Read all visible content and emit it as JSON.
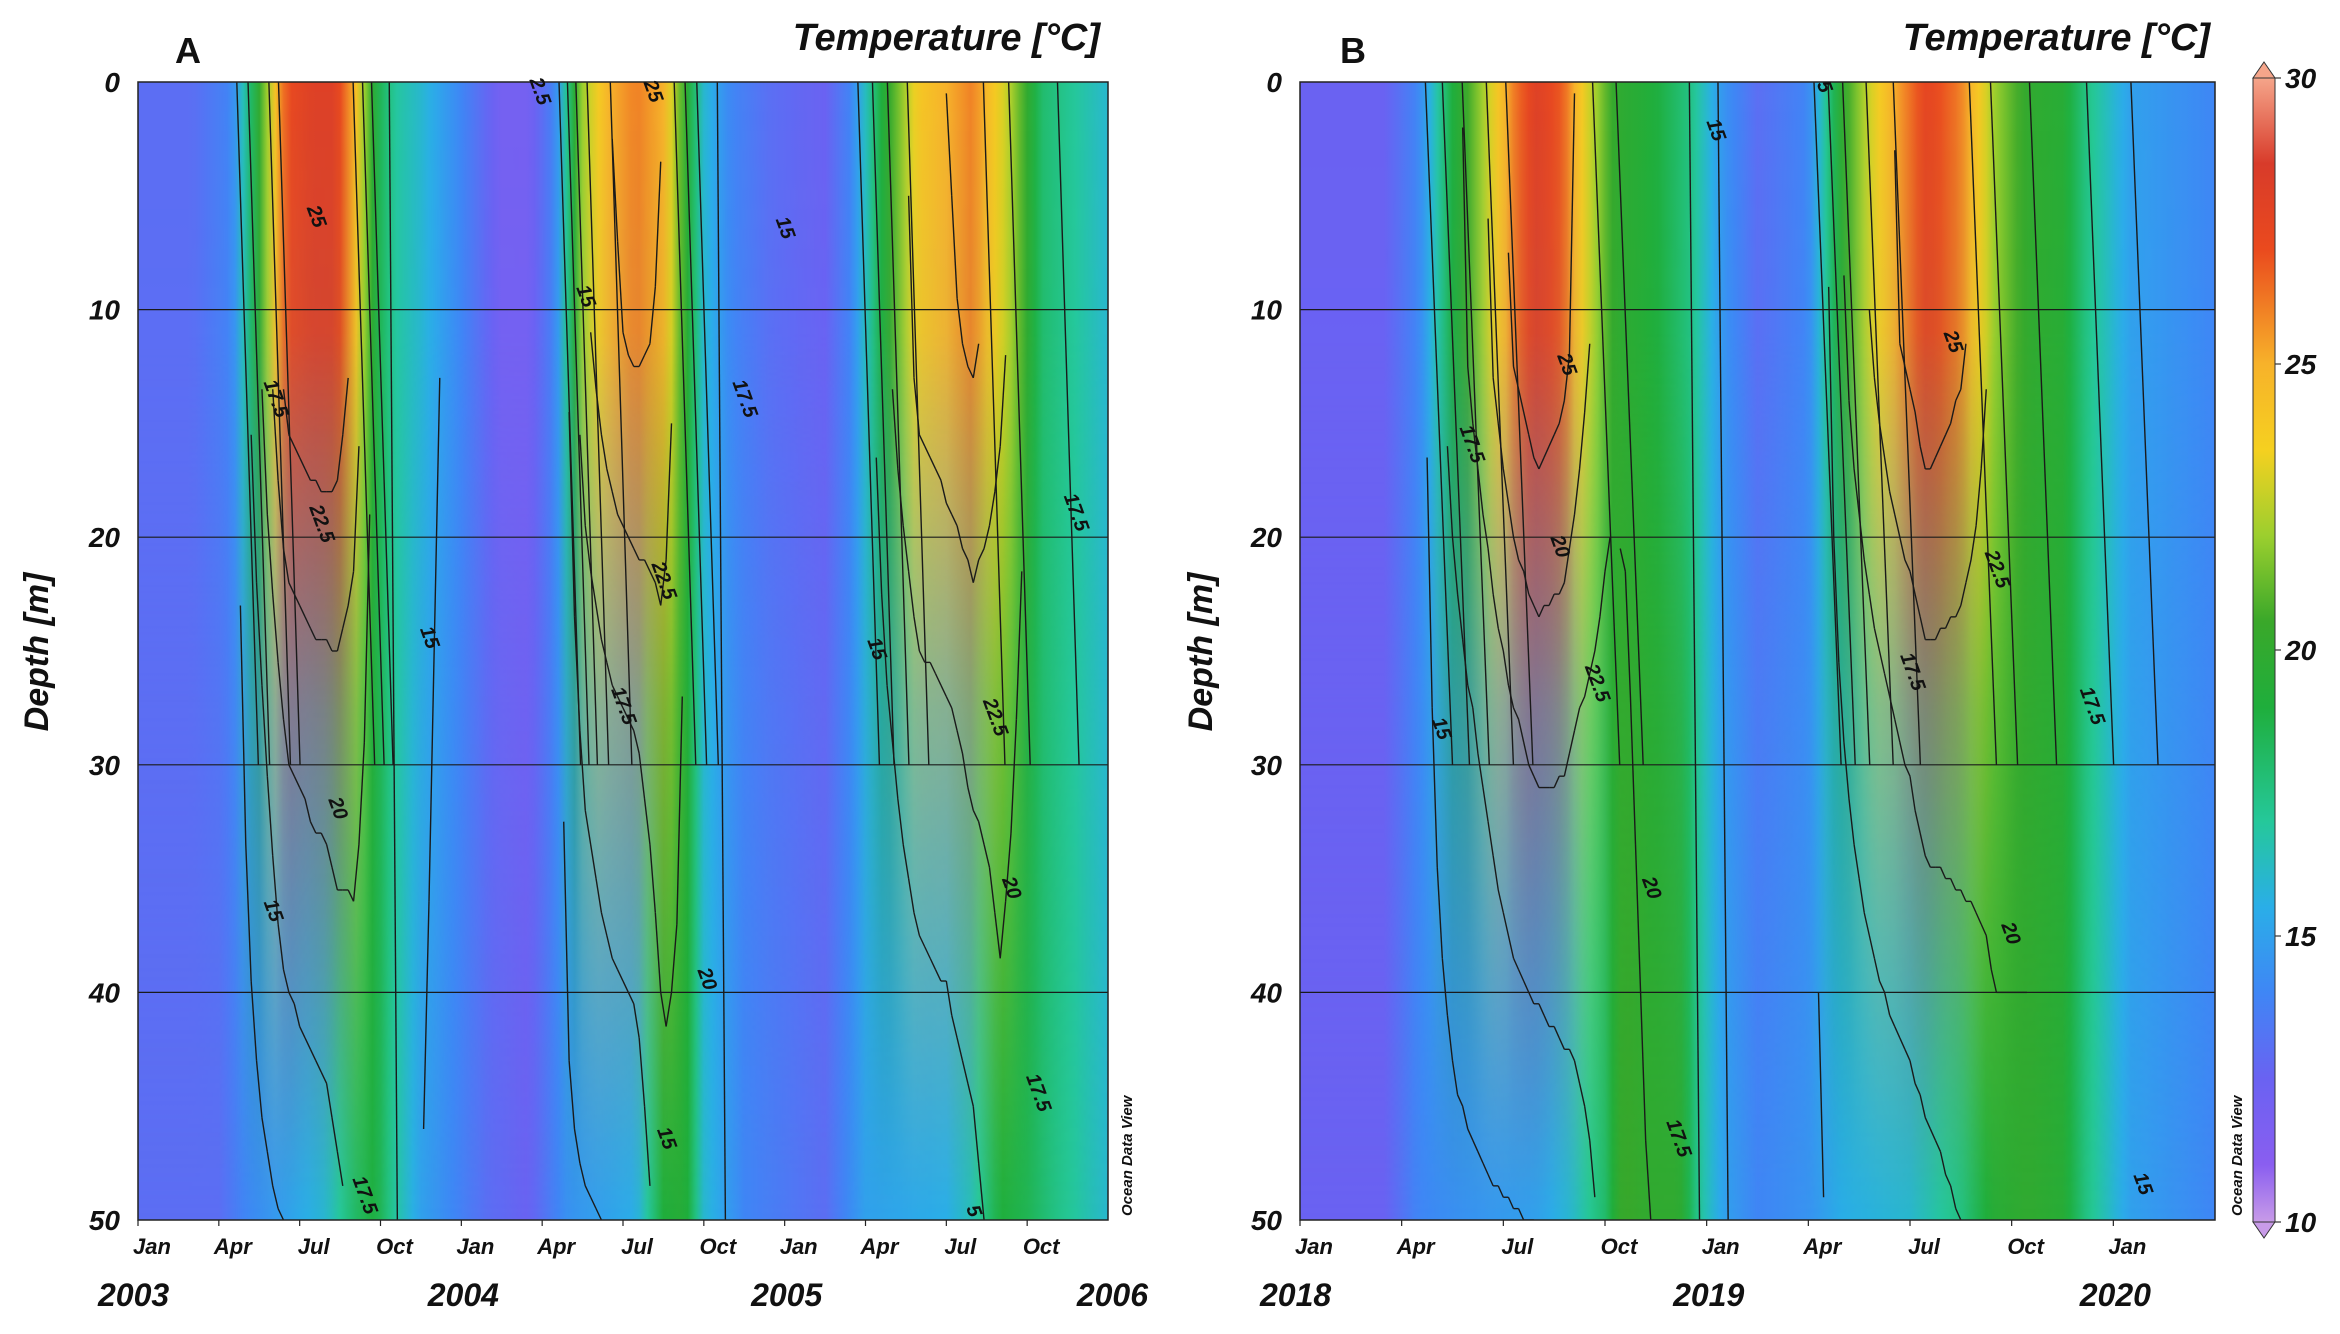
{
  "colorbar": {
    "ticks": [
      30,
      25,
      20,
      15,
      10
    ],
    "range": [
      10,
      30
    ],
    "stops": [
      {
        "value": 10,
        "color": "#c89be8"
      },
      {
        "value": 11,
        "color": "#8a5ef0"
      },
      {
        "value": 12.5,
        "color": "#6a62f2"
      },
      {
        "value": 14,
        "color": "#3f86f5"
      },
      {
        "value": 15.5,
        "color": "#2aaee8"
      },
      {
        "value": 17,
        "color": "#25c89a"
      },
      {
        "value": 19,
        "color": "#1fae3c"
      },
      {
        "value": 20.5,
        "color": "#3aa82a"
      },
      {
        "value": 22,
        "color": "#9ccf2e"
      },
      {
        "value": 23.5,
        "color": "#f5d020"
      },
      {
        "value": 25,
        "color": "#f7b22a"
      },
      {
        "value": 27,
        "color": "#ea4a1e"
      },
      {
        "value": 28.5,
        "color": "#d83b2a"
      },
      {
        "value": 30,
        "color": "#f5a58a"
      }
    ]
  },
  "source_label": "Ocean Data View",
  "chart_data": [
    {
      "type": "heatmap",
      "panel": "A",
      "title": "Temperature [°C]",
      "ylabel": "Depth [m]",
      "ylim": [
        0,
        50
      ],
      "yticks": [
        0,
        10,
        20,
        30,
        40,
        50
      ],
      "month_ticks": [
        "Jan",
        "Apr",
        "Jul",
        "Oct",
        "Jan",
        "Apr",
        "Jul",
        "Oct",
        "Jan",
        "Apr",
        "Jul",
        "Oct"
      ],
      "year_labels": [
        "2003",
        "2004",
        "2005",
        "2006"
      ],
      "surface_profile": [
        {
          "m": 0,
          "t": 13
        },
        {
          "m": 2,
          "t": 13
        },
        {
          "m": 3.5,
          "t": 14
        },
        {
          "m": 4.5,
          "t": 20
        },
        {
          "m": 5.5,
          "t": 27
        },
        {
          "m": 6.5,
          "t": 28
        },
        {
          "m": 7.3,
          "t": 28
        },
        {
          "m": 8,
          "t": 25
        },
        {
          "m": 8.8,
          "t": 19
        },
        {
          "m": 9.5,
          "t": 17
        },
        {
          "m": 10.5,
          "t": 16
        },
        {
          "m": 12,
          "t": 14
        },
        {
          "m": 13.5,
          "t": 12
        },
        {
          "m": 14.5,
          "t": 12
        },
        {
          "m": 15.5,
          "t": 14
        },
        {
          "m": 16.5,
          "t": 22
        },
        {
          "m": 17.5,
          "t": 25
        },
        {
          "m": 18.5,
          "t": 26
        },
        {
          "m": 19.5,
          "t": 25
        },
        {
          "m": 20.3,
          "t": 20
        },
        {
          "m": 21,
          "t": 16
        },
        {
          "m": 22,
          "t": 14
        },
        {
          "m": 23.5,
          "t": 13
        },
        {
          "m": 25.5,
          "t": 12.5
        },
        {
          "m": 26.5,
          "t": 14
        },
        {
          "m": 27.8,
          "t": 20
        },
        {
          "m": 29,
          "t": 24
        },
        {
          "m": 31,
          "t": 26
        },
        {
          "m": 32.5,
          "t": 22
        },
        {
          "m": 33.5,
          "t": 18
        },
        {
          "m": 36,
          "t": 16
        }
      ],
      "bottom_profile": [
        {
          "m": 0,
          "t": 13
        },
        {
          "m": 3,
          "t": 13
        },
        {
          "m": 4,
          "t": 14
        },
        {
          "m": 5.5,
          "t": 15
        },
        {
          "m": 7,
          "t": 16
        },
        {
          "m": 8,
          "t": 18
        },
        {
          "m": 8.8,
          "t": 19
        },
        {
          "m": 9.5,
          "t": 17
        },
        {
          "m": 10.5,
          "t": 15
        },
        {
          "m": 13,
          "t": 13
        },
        {
          "m": 14.5,
          "t": 12.5
        },
        {
          "m": 16,
          "t": 14.5
        },
        {
          "m": 18.5,
          "t": 15.5
        },
        {
          "m": 19.5,
          "t": 19
        },
        {
          "m": 20.3,
          "t": 19.5
        },
        {
          "m": 21,
          "t": 16
        },
        {
          "m": 22.5,
          "t": 14
        },
        {
          "m": 25.5,
          "t": 13
        },
        {
          "m": 27,
          "t": 15
        },
        {
          "m": 30,
          "t": 15.5
        },
        {
          "m": 31,
          "t": 16.5
        },
        {
          "m": 32,
          "t": 19
        },
        {
          "m": 33,
          "t": 18.5
        },
        {
          "m": 34,
          "t": 17.5
        },
        {
          "m": 36,
          "t": 16
        }
      ],
      "contour_labels": [
        {
          "text": "25",
          "month": 6.4,
          "depth": 6
        },
        {
          "text": "17.5",
          "month": 4.9,
          "depth": 14
        },
        {
          "text": "22.5",
          "month": 6.6,
          "depth": 19.5
        },
        {
          "text": "20",
          "month": 7.2,
          "depth": 32
        },
        {
          "text": "15",
          "month": 4.8,
          "depth": 36.5
        },
        {
          "text": "17.5",
          "month": 8.2,
          "depth": 49
        },
        {
          "text": "15",
          "month": 10.6,
          "depth": 24.5
        },
        {
          "text": "2.5",
          "month": 14.7,
          "depth": 0.5
        },
        {
          "text": "15",
          "month": 16.4,
          "depth": 9.5
        },
        {
          "text": "25",
          "month": 18.9,
          "depth": 0.5
        },
        {
          "text": "22.5",
          "month": 19.3,
          "depth": 22
        },
        {
          "text": "17.5",
          "month": 17.8,
          "depth": 27.5
        },
        {
          "text": "20",
          "month": 20.9,
          "depth": 39.5
        },
        {
          "text": "15",
          "month": 19.4,
          "depth": 46.5
        },
        {
          "text": "15",
          "month": 23.8,
          "depth": 6.5
        },
        {
          "text": "17.5",
          "month": 22.3,
          "depth": 14
        },
        {
          "text": "15",
          "month": 27.2,
          "depth": 25
        },
        {
          "text": "22.5",
          "month": 31.6,
          "depth": 28
        },
        {
          "text": "20",
          "month": 32.2,
          "depth": 35.5
        },
        {
          "text": "17.5",
          "month": 33.2,
          "depth": 44.5
        },
        {
          "text": "5",
          "month": 30.8,
          "depth": 49.7
        },
        {
          "text": "17.5",
          "month": 34.6,
          "depth": 19
        }
      ]
    },
    {
      "type": "heatmap",
      "panel": "B",
      "title": "Temperature [°C]",
      "ylabel": "Depth [m]",
      "ylim": [
        0,
        50
      ],
      "yticks": [
        0,
        10,
        20,
        30,
        40,
        50
      ],
      "month_ticks": [
        "Jan",
        "Apr",
        "Jul",
        "Oct",
        "Jan",
        "Apr",
        "Jul",
        "Oct",
        "Jan"
      ],
      "year_labels": [
        "2018",
        "2019",
        "2020"
      ],
      "surface_profile": [
        {
          "m": 0,
          "t": 12.5
        },
        {
          "m": 2.5,
          "t": 12.5
        },
        {
          "m": 3.5,
          "t": 14
        },
        {
          "m": 4.5,
          "t": 19
        },
        {
          "m": 5.5,
          "t": 22.5
        },
        {
          "m": 6.3,
          "t": 26
        },
        {
          "m": 7,
          "t": 28
        },
        {
          "m": 7.8,
          "t": 26.5
        },
        {
          "m": 8.5,
          "t": 23
        },
        {
          "m": 9.3,
          "t": 20
        },
        {
          "m": 10.5,
          "t": 19
        },
        {
          "m": 11.5,
          "t": 17.5
        },
        {
          "m": 12.5,
          "t": 14.5
        },
        {
          "m": 13.5,
          "t": 13
        },
        {
          "m": 15,
          "t": 14
        },
        {
          "m": 16,
          "t": 20
        },
        {
          "m": 16.7,
          "t": 22.5
        },
        {
          "m": 17.5,
          "t": 25
        },
        {
          "m": 18.5,
          "t": 27.5
        },
        {
          "m": 19.5,
          "t": 26
        },
        {
          "m": 20.5,
          "t": 22
        },
        {
          "m": 21.5,
          "t": 20
        },
        {
          "m": 22.5,
          "t": 19.5
        },
        {
          "m": 23.2,
          "t": 17.5
        },
        {
          "m": 24.5,
          "t": 15
        },
        {
          "m": 27,
          "t": 14
        }
      ],
      "bottom_profile": [
        {
          "m": 0,
          "t": 12.5
        },
        {
          "m": 2.5,
          "t": 12.5
        },
        {
          "m": 3.5,
          "t": 14
        },
        {
          "m": 5,
          "t": 14.5
        },
        {
          "m": 7,
          "t": 15
        },
        {
          "m": 8,
          "t": 16
        },
        {
          "m": 9,
          "t": 18
        },
        {
          "m": 9.5,
          "t": 20.5
        },
        {
          "m": 10.3,
          "t": 20
        },
        {
          "m": 11.2,
          "t": 20
        },
        {
          "m": 11.8,
          "t": 17
        },
        {
          "m": 12.5,
          "t": 15
        },
        {
          "m": 13.5,
          "t": 14
        },
        {
          "m": 15,
          "t": 14.5
        },
        {
          "m": 16,
          "t": 15.5
        },
        {
          "m": 18,
          "t": 16
        },
        {
          "m": 19.5,
          "t": 17.5
        },
        {
          "m": 20.5,
          "t": 19.5
        },
        {
          "m": 21.5,
          "t": 20
        },
        {
          "m": 22.5,
          "t": 19.5
        },
        {
          "m": 23.2,
          "t": 17.5
        },
        {
          "m": 24.5,
          "t": 15
        },
        {
          "m": 27,
          "t": 14
        }
      ],
      "contour_labels": [
        {
          "text": "25",
          "month": 7.7,
          "depth": 12.5
        },
        {
          "text": "17.5",
          "month": 4.9,
          "depth": 16
        },
        {
          "text": "20",
          "month": 7.5,
          "depth": 20.5
        },
        {
          "text": "22.5",
          "month": 8.6,
          "depth": 26.5
        },
        {
          "text": "15",
          "month": 4.0,
          "depth": 28.5
        },
        {
          "text": "20",
          "month": 10.2,
          "depth": 35.5
        },
        {
          "text": "17.5",
          "month": 11.0,
          "depth": 46.5
        },
        {
          "text": "15",
          "month": 12.1,
          "depth": 2.2
        },
        {
          "text": "5",
          "month": 15.3,
          "depth": 0.3
        },
        {
          "text": "25",
          "month": 19.1,
          "depth": 11.5
        },
        {
          "text": "22.5",
          "month": 20.4,
          "depth": 21.5
        },
        {
          "text": "17.5",
          "month": 17.9,
          "depth": 26
        },
        {
          "text": "20",
          "month": 20.8,
          "depth": 37.5
        },
        {
          "text": "17.5",
          "month": 23.2,
          "depth": 27.5
        },
        {
          "text": "15",
          "month": 24.7,
          "depth": 48.5
        }
      ]
    }
  ]
}
